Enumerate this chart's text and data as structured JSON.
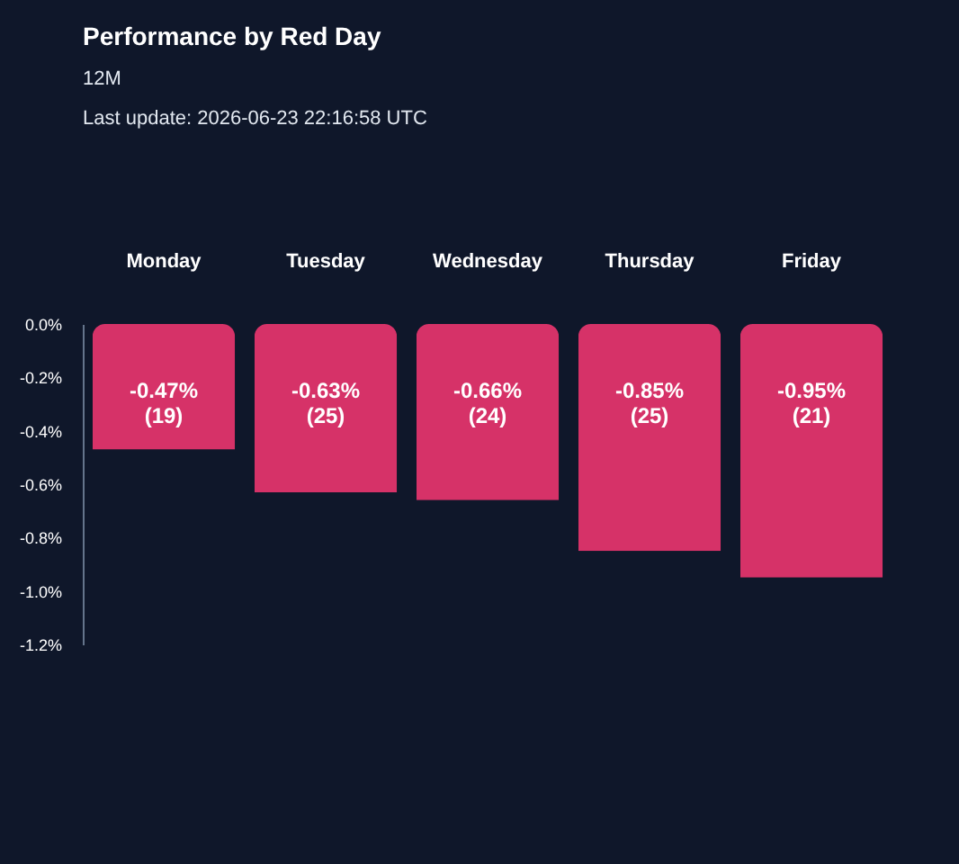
{
  "chart_data": {
    "type": "bar",
    "title": "Performance by Red Day",
    "subtitle": "12M",
    "annotations": [
      "Last update: 2026-06-23 22:16:58 UTC"
    ],
    "categories": [
      "Monday",
      "Tuesday",
      "Wednesday",
      "Thursday",
      "Friday"
    ],
    "values": [
      -0.47,
      -0.63,
      -0.66,
      -0.85,
      -0.95
    ],
    "value_labels": [
      "-0.47%\n(19)",
      "-0.63%\n(25)",
      "-0.66%\n(24)",
      "-0.85%\n(25)",
      "-0.95%\n(21)"
    ],
    "color": "#d63268",
    "ylim": [
      -1.2,
      0
    ],
    "yticks": [
      {
        "value": 0,
        "label": "0.0%"
      },
      {
        "value": -0.2,
        "label": "-0.2%"
      },
      {
        "value": -0.4,
        "label": "-0.4%"
      },
      {
        "value": -0.6,
        "label": "-0.6%"
      },
      {
        "value": -0.8,
        "label": "-0.8%"
      },
      {
        "value": -1.0,
        "label": "-1.0%"
      },
      {
        "value": -1.2,
        "label": "-1.2%"
      }
    ],
    "grid": false
  }
}
